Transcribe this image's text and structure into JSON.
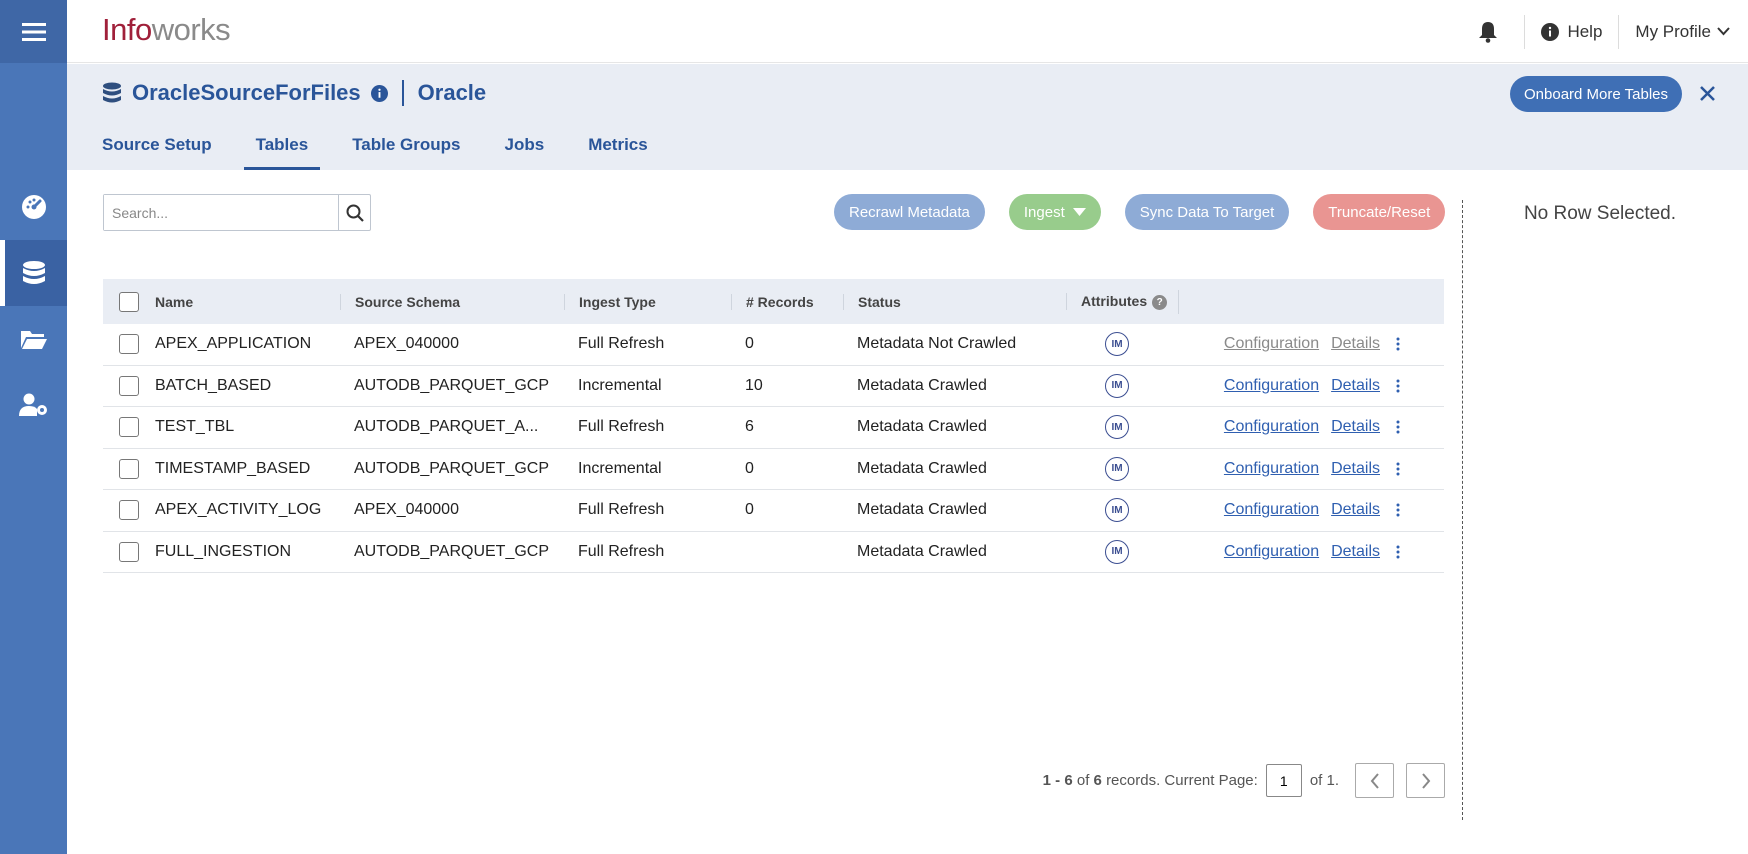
{
  "app": {
    "logo_part1": "Info",
    "logo_part2": "works"
  },
  "topbar": {
    "help_label": "Help",
    "profile_label": "My Profile"
  },
  "sidebar": {
    "items": [
      {
        "icon": "dashboard-icon"
      },
      {
        "icon": "database-icon",
        "active": true
      },
      {
        "icon": "folder-icon"
      },
      {
        "icon": "user-settings-icon"
      }
    ]
  },
  "source": {
    "name": "OracleSourceForFiles",
    "type": "Oracle",
    "onboard_label": "Onboard More Tables"
  },
  "tabs": [
    {
      "label": "Source Setup"
    },
    {
      "label": "Tables",
      "active": true
    },
    {
      "label": "Table Groups"
    },
    {
      "label": "Jobs"
    },
    {
      "label": "Metrics"
    }
  ],
  "search": {
    "placeholder": "Search..."
  },
  "actions": {
    "recrawl": "Recrawl Metadata",
    "ingest": "Ingest",
    "sync": "Sync Data To Target",
    "truncate": "Truncate/Reset"
  },
  "side_panel": {
    "empty_text": "No Row Selected."
  },
  "table": {
    "columns": {
      "name": "Name",
      "schema": "Source Schema",
      "ingest_type": "Ingest Type",
      "records": "# Records",
      "status": "Status",
      "attributes": "Attributes"
    },
    "attr_help": "?",
    "link_config": "Configuration",
    "link_details": "Details",
    "badge": "IM",
    "rows": [
      {
        "name": "APEX_APPLICATION",
        "schema": "APEX_040000",
        "ingest_type": "Full Refresh",
        "records": "0",
        "status": "Metadata Not Crawled"
      },
      {
        "name": "BATCH_BASED",
        "schema": "AUTODB_PARQUET_GCP",
        "ingest_type": "Incremental",
        "records": "10",
        "status": "Metadata Crawled"
      },
      {
        "name": "TEST_TBL",
        "schema": "AUTODB_PARQUET_A...",
        "ingest_type": "Full Refresh",
        "records": "6",
        "status": "Metadata Crawled"
      },
      {
        "name": "TIMESTAMP_BASED",
        "schema": "AUTODB_PARQUET_GCP",
        "ingest_type": "Incremental",
        "records": "0",
        "status": "Metadata Crawled"
      },
      {
        "name": "APEX_ACTIVITY_LOG",
        "schema": "APEX_040000",
        "ingest_type": "Full Refresh",
        "records": "0",
        "status": "Metadata Crawled"
      },
      {
        "name": "FULL_INGESTION",
        "schema": "AUTODB_PARQUET_GCP",
        "ingest_type": "Full Refresh",
        "records": "",
        "status": "Metadata Crawled"
      }
    ]
  },
  "pagination": {
    "range": "1 - 6",
    "of_label": "of",
    "total": "6",
    "records_label": "records. Current Page:",
    "current_page": "1",
    "of_pages": "of 1."
  }
}
